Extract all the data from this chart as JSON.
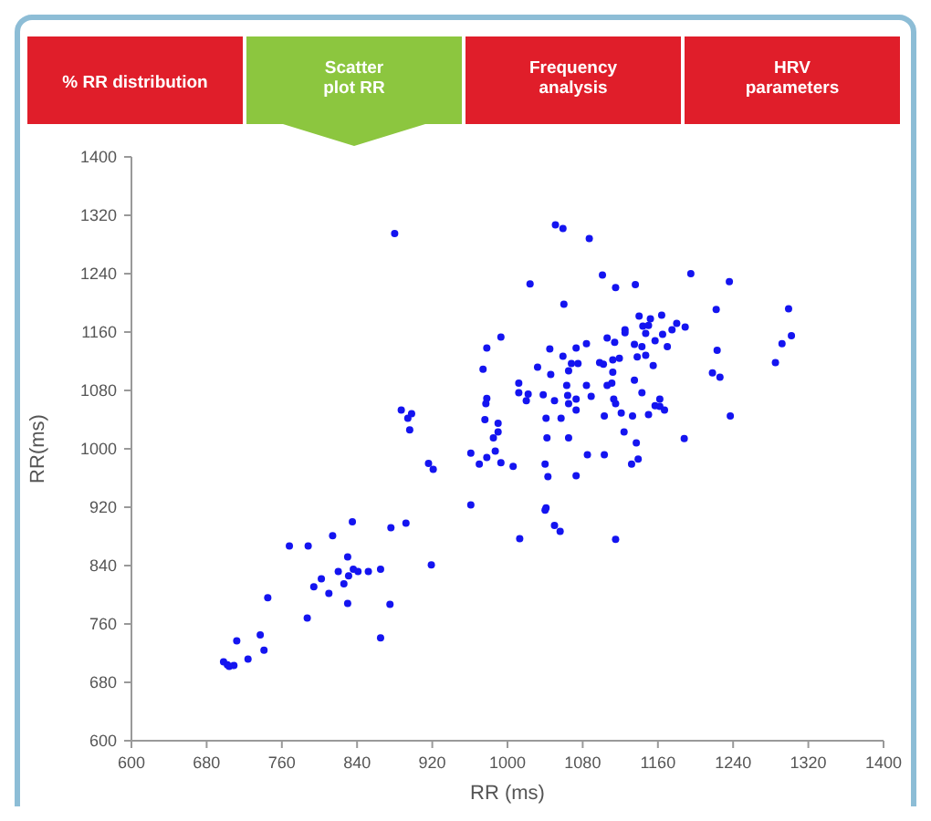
{
  "chart_data": {
    "type": "scatter",
    "xlabel": "RR (ms)",
    "ylabel": "RR(ms)",
    "annotations": [
      "% RR distribution",
      "Scatter plot RR",
      "Frequency analysis",
      "HRV parameters"
    ],
    "xlim": [
      600,
      1400
    ],
    "xticks": [
      600,
      680,
      760,
      840,
      920,
      1000,
      1080,
      1160,
      1240,
      1320,
      1400
    ],
    "ylim": [
      600,
      1400
    ],
    "yticks": [
      600,
      680,
      760,
      840,
      920,
      1000,
      1080,
      1160,
      1240,
      1320,
      1400
    ],
    "grid": false,
    "marker": "circle",
    "series": [
      {
        "color": "#1414f0",
        "x": [
          698,
          702,
          704,
          709,
          712,
          724,
          737,
          741,
          745,
          768,
          788,
          787,
          794,
          802,
          810,
          814,
          820,
          826,
          830,
          831,
          830,
          835,
          836,
          841,
          852,
          865,
          865,
          875,
          876,
          892,
          919,
          961,
          880,
          1051,
          1059,
          1087,
          1101,
          1024,
          1060,
          993,
          978,
          974,
          1045,
          1059,
          1073,
          1084,
          1106,
          1032,
          1046,
          1065,
          1068,
          1075,
          1098,
          1012,
          1012,
          1022,
          1020,
          1038,
          1050,
          1063,
          1064,
          1073,
          1065,
          1084,
          1089,
          1073,
          978,
          977,
          976,
          990,
          990,
          985,
          1041,
          1057,
          1103,
          1042,
          1065,
          961,
          978,
          987,
          970,
          993,
          1006,
          1040,
          1085,
          1103,
          1043,
          1073,
          887,
          898,
          894,
          896,
          916,
          921,
          1041,
          1040,
          1050,
          1056,
          1013,
          1195,
          1236,
          1115,
          1136,
          1222,
          1299,
          1302,
          1292,
          1285,
          1223,
          1218,
          1226,
          1237,
          1188,
          1140,
          1152,
          1164,
          1180,
          1189,
          1144,
          1150,
          1125,
          1125,
          1147,
          1165,
          1175,
          1114,
          1135,
          1143,
          1157,
          1170,
          1138,
          1147,
          1155,
          1112,
          1119,
          1102,
          1112,
          1106,
          1111,
          1135,
          1113,
          1115,
          1143,
          1162,
          1157,
          1162,
          1167,
          1150,
          1133,
          1121,
          1124,
          1137,
          1139,
          1132,
          1115
        ],
        "values": [
          708,
          704,
          702,
          703,
          737,
          712,
          745,
          724,
          796,
          867,
          867,
          768,
          811,
          822,
          802,
          881,
          832,
          815,
          852,
          826,
          788,
          900,
          835,
          832,
          832,
          835,
          741,
          787,
          892,
          898,
          841,
          923,
          1295,
          1307,
          1302,
          1288,
          1238,
          1226,
          1198,
          1153,
          1138,
          1109,
          1137,
          1127,
          1138,
          1144,
          1152,
          1112,
          1102,
          1107,
          1117,
          1117,
          1118,
          1090,
          1077,
          1075,
          1066,
          1074,
          1066,
          1087,
          1073,
          1068,
          1062,
          1087,
          1072,
          1053,
          1069,
          1062,
          1040,
          1035,
          1023,
          1015,
          1042,
          1042,
          1045,
          1015,
          1015,
          994,
          988,
          997,
          979,
          981,
          976,
          979,
          992,
          992,
          962,
          963,
          1053,
          1048,
          1042,
          1026,
          980,
          972,
          919,
          916,
          895,
          887,
          877,
          1240,
          1229,
          1221,
          1225,
          1191,
          1192,
          1155,
          1144,
          1118,
          1135,
          1104,
          1098,
          1045,
          1014,
          1182,
          1178,
          1183,
          1172,
          1167,
          1168,
          1169,
          1163,
          1159,
          1158,
          1157,
          1163,
          1146,
          1143,
          1140,
          1148,
          1140,
          1126,
          1128,
          1114,
          1122,
          1124,
          1116,
          1105,
          1087,
          1090,
          1094,
          1068,
          1062,
          1077,
          1068,
          1059,
          1058,
          1053,
          1047,
          1045,
          1049,
          1023,
          1008,
          986,
          979,
          876
        ]
      }
    ]
  }
}
